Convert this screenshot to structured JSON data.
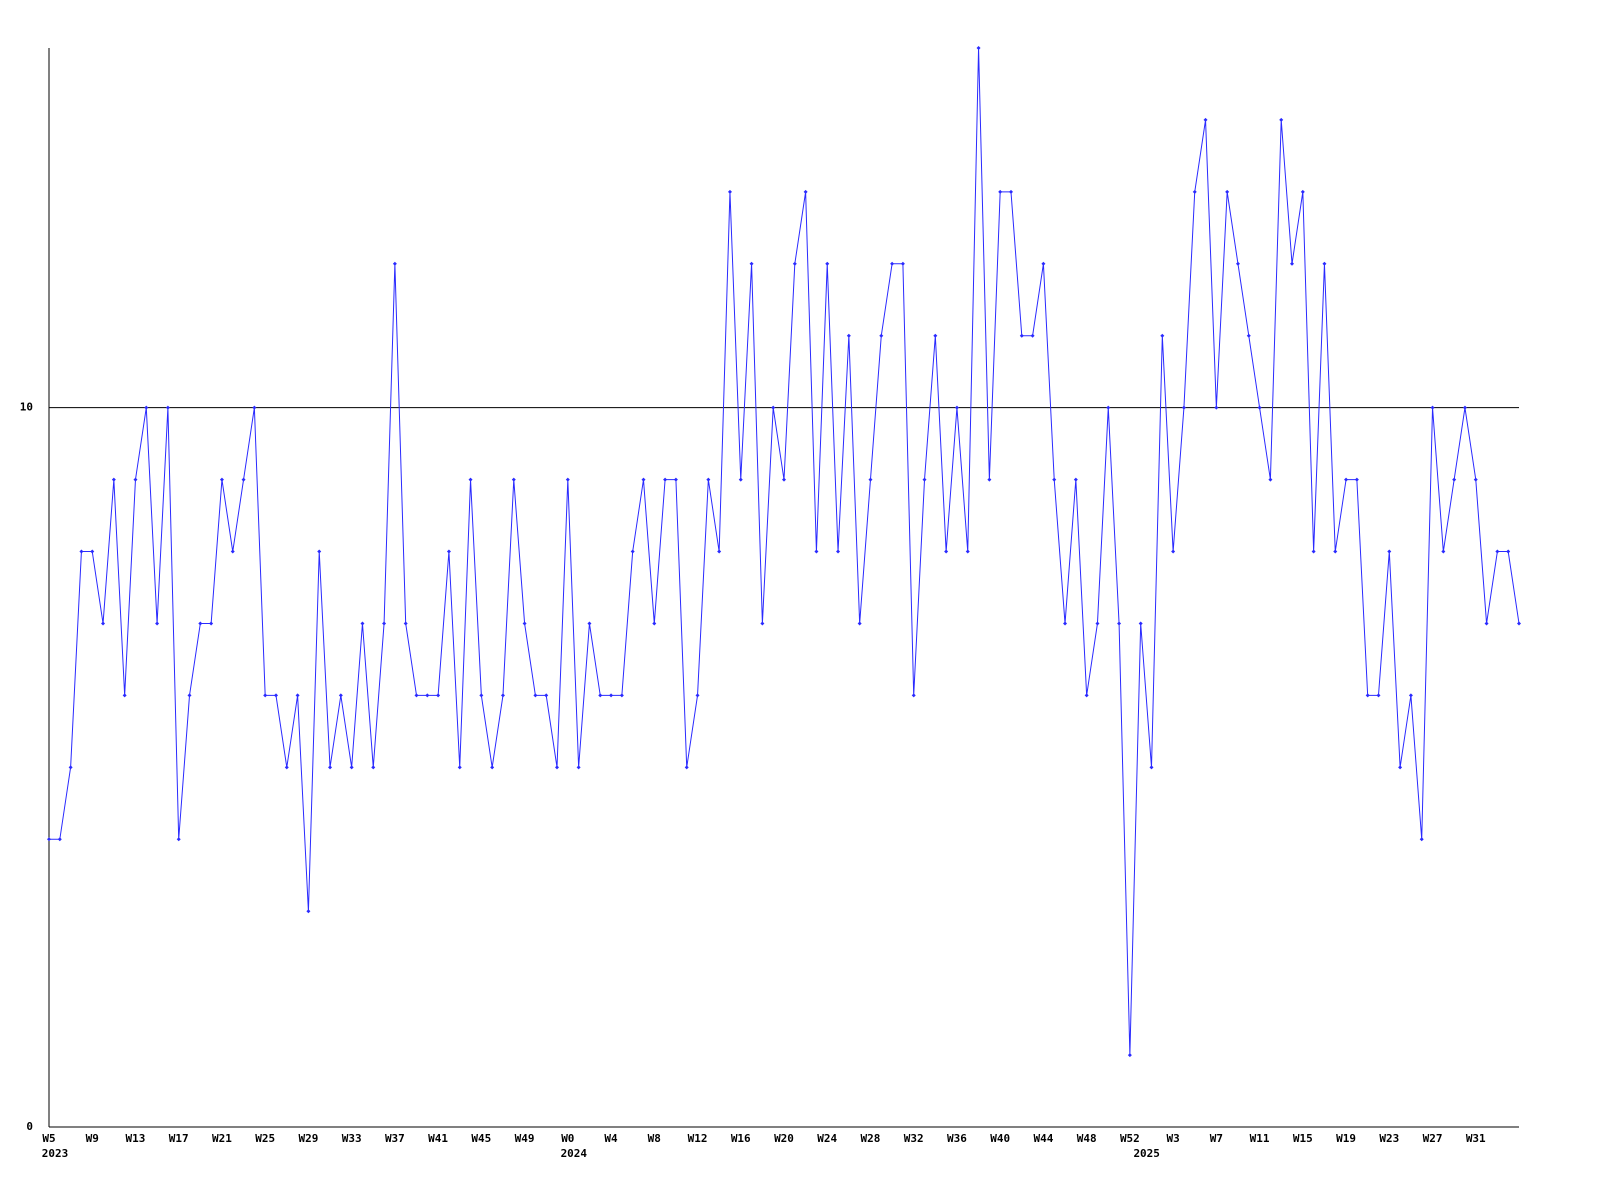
{
  "chart_data": {
    "type": "line",
    "categories": [
      "W5",
      null,
      null,
      null,
      "W9",
      null,
      null,
      null,
      "W13",
      null,
      null,
      null,
      "W17",
      null,
      null,
      null,
      "W21",
      null,
      null,
      null,
      "W25",
      null,
      null,
      null,
      "W29",
      null,
      null,
      null,
      "W33",
      null,
      null,
      null,
      "W37",
      null,
      null,
      null,
      "W41",
      null,
      null,
      null,
      "W45",
      null,
      null,
      null,
      "W49",
      null,
      null,
      null,
      "W0",
      null,
      null,
      null,
      "W4",
      null,
      null,
      null,
      "W8",
      null,
      null,
      null,
      "W12",
      null,
      null,
      null,
      "W16",
      null,
      null,
      null,
      "W20",
      null,
      null,
      null,
      "W24",
      null,
      null,
      null,
      "W28",
      null,
      null,
      null,
      "W32",
      null,
      null,
      null,
      "W36",
      null,
      null,
      null,
      "W40",
      null,
      null,
      null,
      "W44",
      null,
      null,
      null,
      "W48",
      null,
      null,
      null,
      "W52",
      null,
      null,
      null,
      "W3",
      null,
      null,
      null,
      "W7",
      null,
      null,
      null,
      "W11",
      null,
      null,
      null,
      "W15",
      null,
      null,
      null,
      "W19",
      null,
      null,
      null,
      "W23",
      null,
      null,
      null,
      "W27",
      null,
      null,
      null,
      "W31",
      null,
      null,
      null,
      null
    ],
    "category_groups": [
      "2023",
      null,
      null,
      null,
      null,
      null,
      null,
      null,
      null,
      null,
      null,
      null,
      null,
      null,
      null,
      null,
      null,
      null,
      null,
      null,
      null,
      null,
      null,
      null,
      null,
      null,
      null,
      null,
      null,
      null,
      null,
      null,
      null,
      null,
      null,
      null,
      null,
      null,
      null,
      null,
      null,
      null,
      null,
      null,
      null,
      null,
      null,
      null,
      "2024",
      null,
      null,
      null,
      null,
      null,
      null,
      null,
      null,
      null,
      null,
      null,
      null,
      null,
      null,
      null,
      null,
      null,
      null,
      null,
      null,
      null,
      null,
      null,
      null,
      null,
      null,
      null,
      null,
      null,
      null,
      null,
      null,
      null,
      null,
      null,
      null,
      null,
      null,
      null,
      null,
      null,
      null,
      null,
      null,
      null,
      null,
      null,
      null,
      null,
      null,
      null,
      null,
      "2025",
      null,
      null,
      null,
      null,
      null,
      null,
      null,
      null,
      null,
      null,
      null,
      null,
      null,
      null,
      null,
      null,
      null,
      null,
      null,
      null,
      null,
      null,
      null,
      null,
      null,
      null,
      null,
      null,
      null,
      null,
      null,
      null,
      null,
      null,
      null
    ],
    "series": [
      {
        "color": "#2a2aff",
        "values": [
          4,
          4,
          5,
          8,
          8,
          7,
          9,
          6,
          9,
          10,
          7,
          10,
          4,
          6,
          7,
          7,
          9,
          8,
          9,
          10,
          6,
          6,
          5,
          6,
          3,
          8,
          5,
          6,
          5,
          7,
          5,
          7,
          12,
          7,
          6,
          6,
          6,
          8,
          5,
          9,
          6,
          5,
          6,
          9,
          7,
          6,
          6,
          5,
          9,
          5,
          7,
          6,
          6,
          6,
          8,
          9,
          7,
          9,
          9,
          5,
          6,
          9,
          8,
          13,
          9,
          12,
          7,
          10,
          9,
          12,
          13,
          8,
          12,
          8,
          11,
          7,
          9,
          11,
          12,
          12,
          6,
          9,
          11,
          8,
          10,
          8,
          15,
          9,
          13,
          13,
          11,
          11,
          12,
          9,
          7,
          9,
          6,
          7,
          10,
          7,
          1,
          7,
          5,
          11,
          8,
          10,
          13,
          14,
          10,
          13,
          12,
          11,
          10,
          9,
          14,
          12,
          13,
          8,
          12,
          8,
          9,
          9,
          6,
          6,
          8,
          5,
          6,
          4,
          10,
          8,
          9,
          10,
          9,
          7,
          8,
          8,
          7
        ]
      }
    ],
    "ylim": [
      0,
      15
    ],
    "yticks": [
      0,
      10
    ],
    "grid": true
  }
}
